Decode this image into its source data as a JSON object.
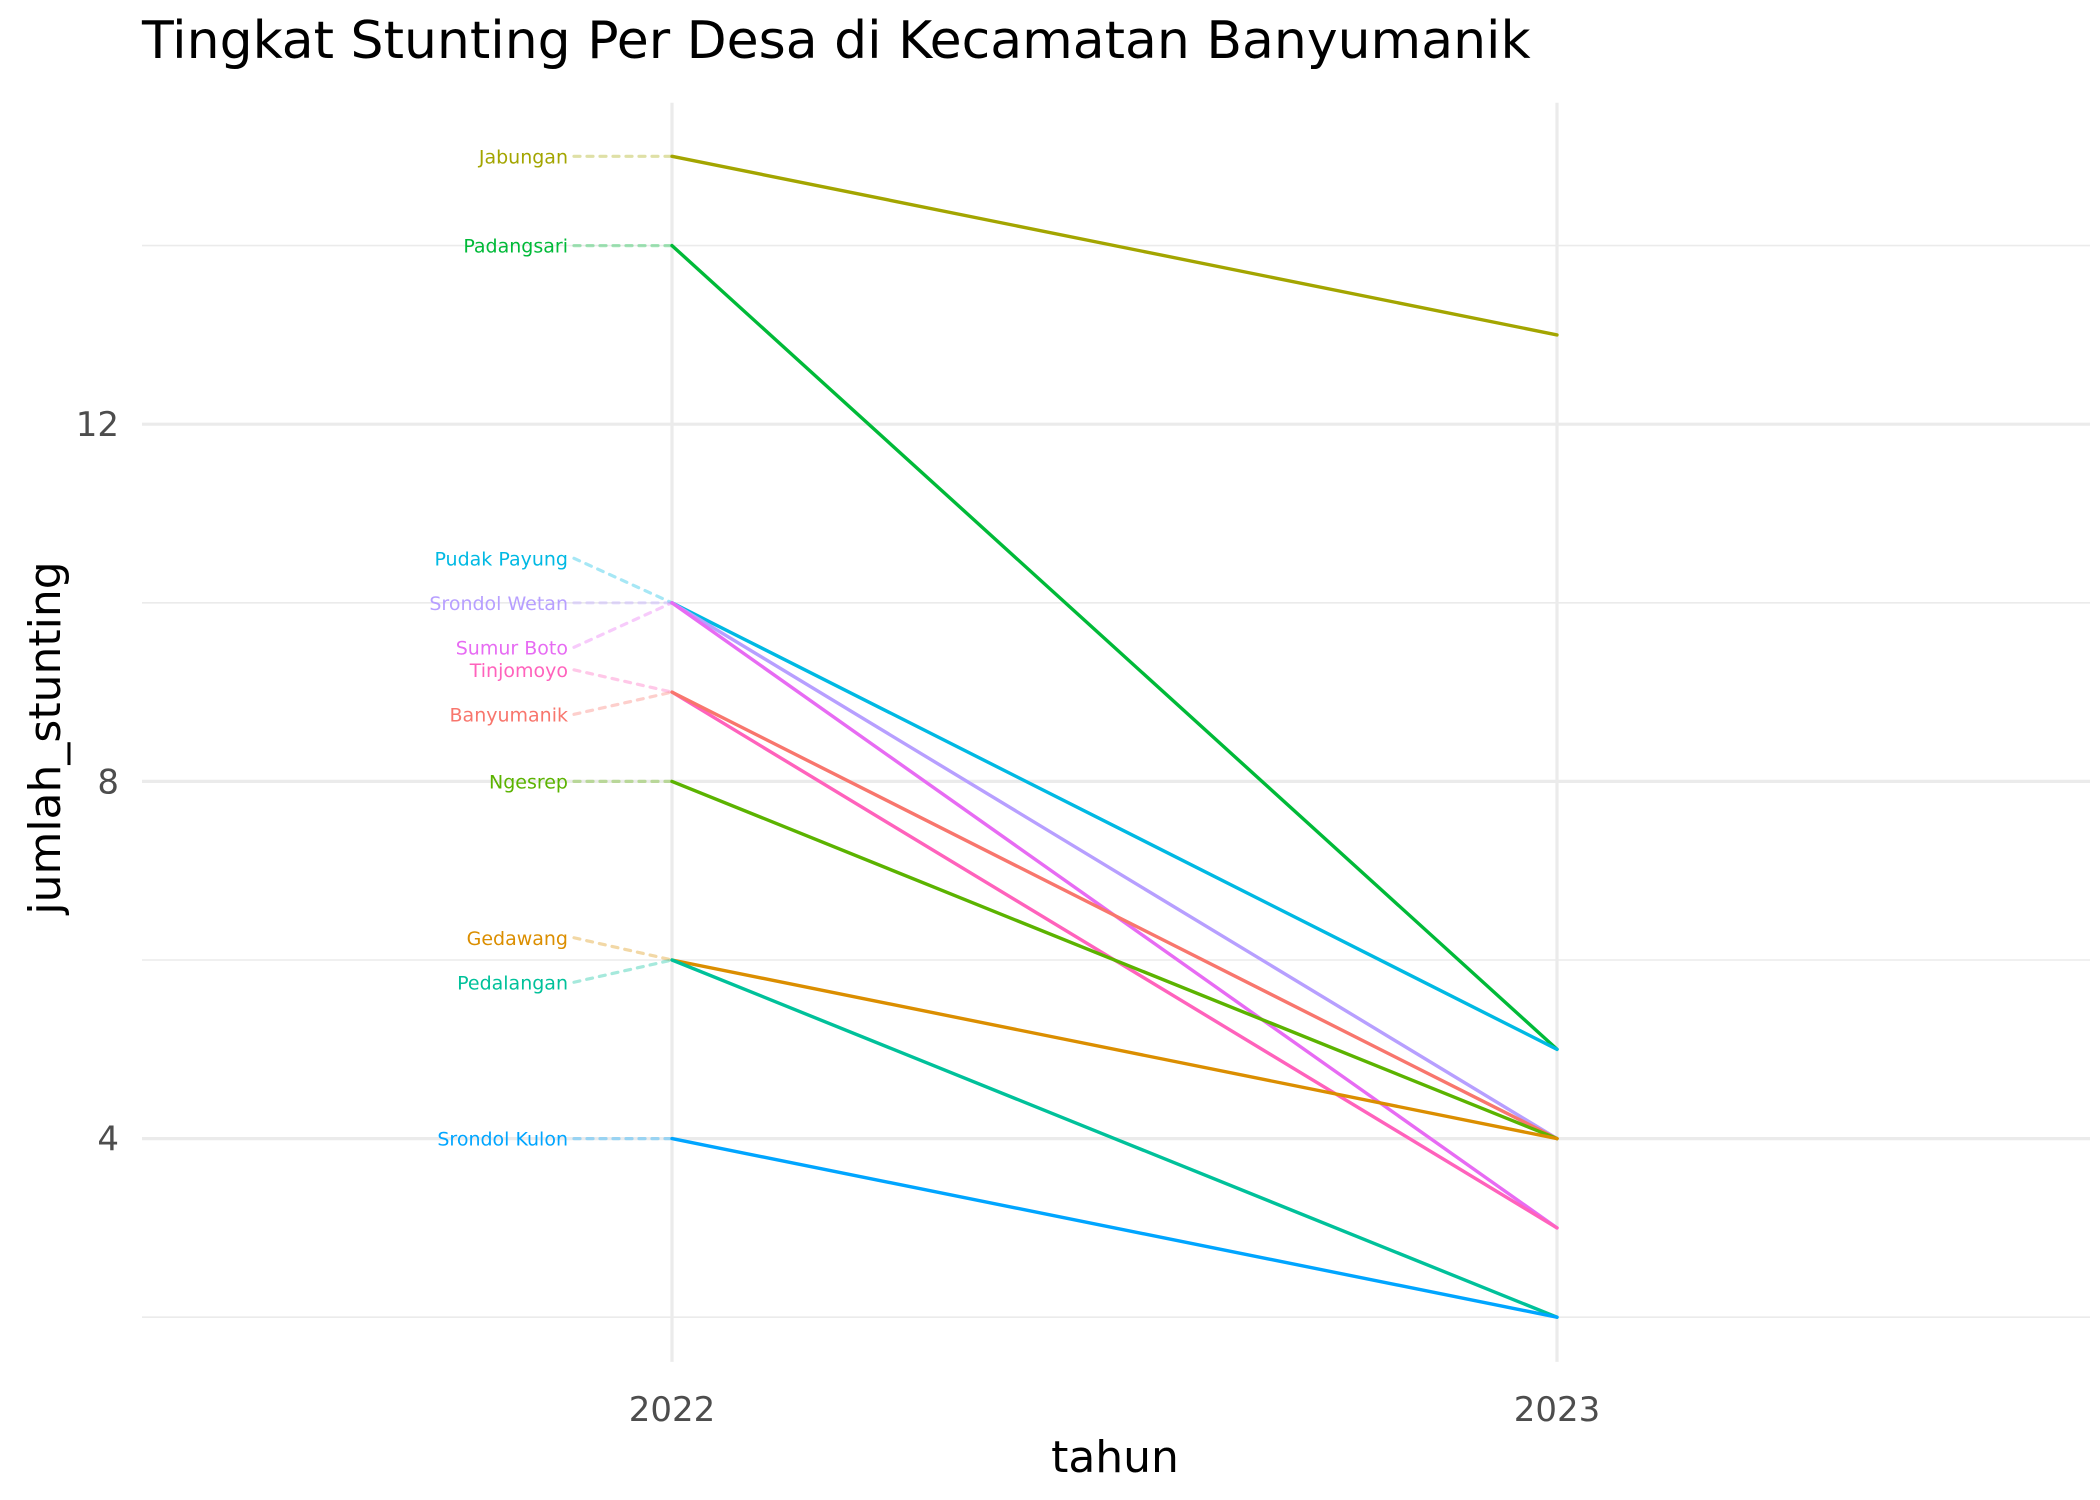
{
  "chart_data": {
    "type": "line",
    "title": "Tingkat Stunting Per Desa di Kecamatan Banyumanik",
    "xlabel": "tahun",
    "ylabel": "jumlah_stunting",
    "categories": [
      "2022",
      "2023"
    ],
    "y_ticks": [
      "4",
      "8",
      "12"
    ],
    "ylim": [
      1.5,
      15.6
    ],
    "grid": true,
    "legend": "none (direct labels at left of 2022)",
    "series": [
      {
        "name": "Jabungan",
        "color": "#A3A500",
        "values": [
          15,
          13
        ]
      },
      {
        "name": "Padangsari",
        "color": "#00BA38",
        "values": [
          14,
          5
        ]
      },
      {
        "name": "Pudak Payung",
        "color": "#00B9E3",
        "values": [
          10,
          5
        ]
      },
      {
        "name": "Srondol Wetan",
        "color": "#B79FFF",
        "values": [
          10,
          4
        ]
      },
      {
        "name": "Sumur Boto",
        "color": "#E76BF3",
        "values": [
          10,
          3
        ]
      },
      {
        "name": "Tinjomoyo",
        "color": "#FF62BC",
        "values": [
          9,
          3
        ]
      },
      {
        "name": "Banyumanik",
        "color": "#F8766D",
        "values": [
          9,
          4
        ]
      },
      {
        "name": "Ngesrep",
        "color": "#5BB300",
        "values": [
          8,
          4
        ]
      },
      {
        "name": "Gedawang",
        "color": "#DB8E00",
        "values": [
          6,
          4
        ]
      },
      {
        "name": "Pedalangan",
        "color": "#00C19A",
        "values": [
          6,
          2
        ]
      },
      {
        "name": "Srondol Kulon",
        "color": "#00A5FF",
        "values": [
          4,
          2
        ]
      }
    ]
  }
}
